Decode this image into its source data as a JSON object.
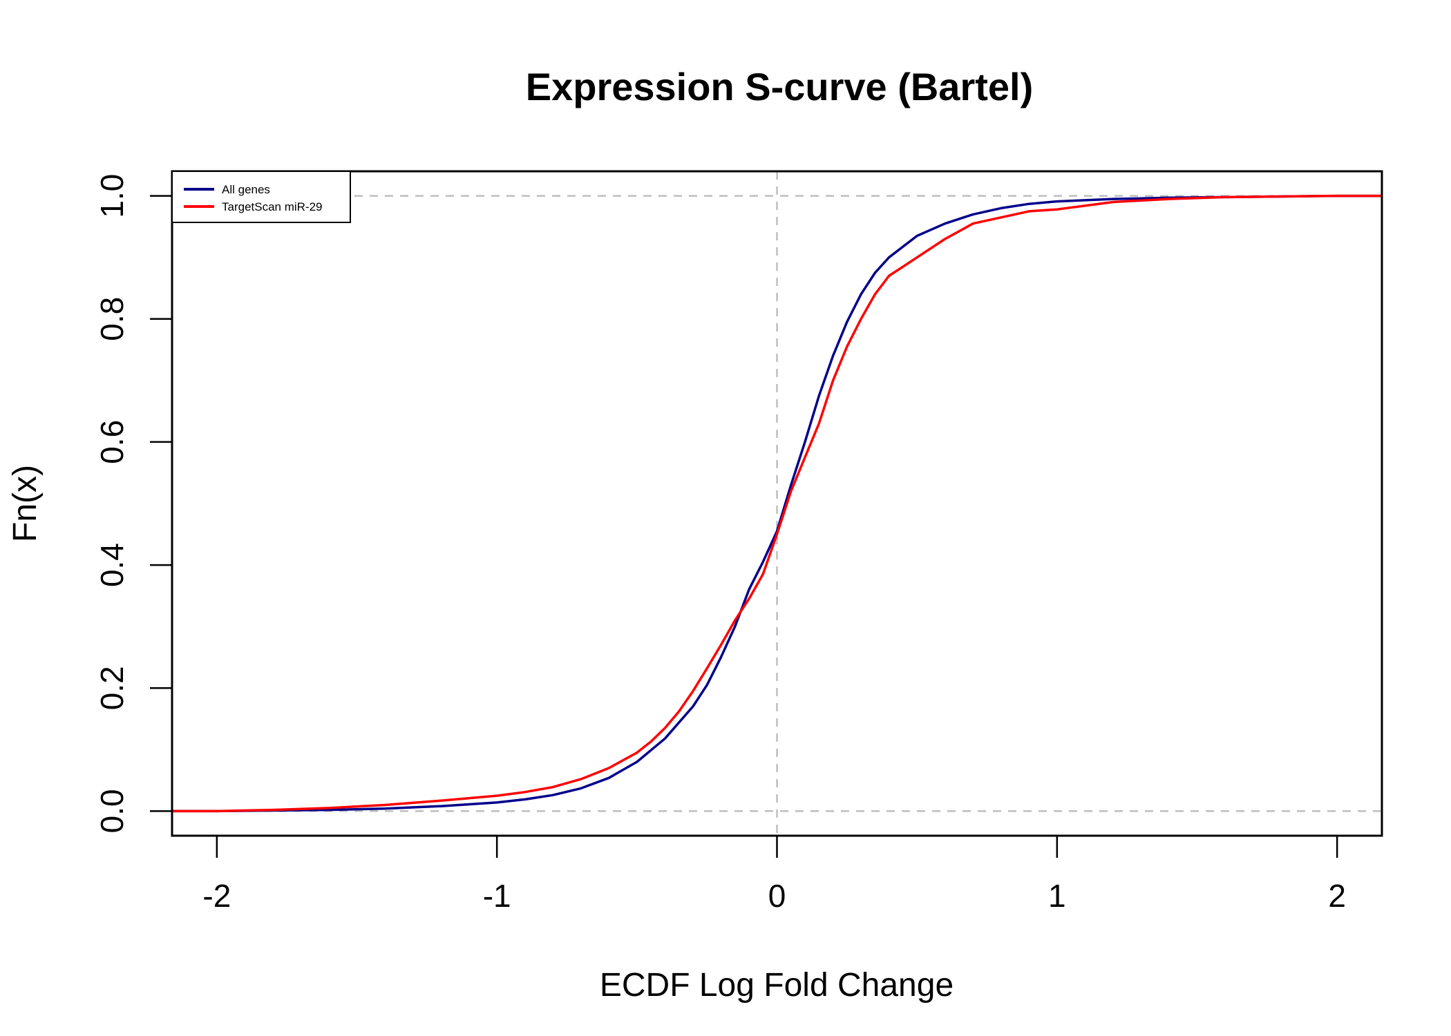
{
  "chart_data": {
    "type": "line",
    "title": "Expression S-curve (Bartel)",
    "xlabel": "ECDF Log Fold Change",
    "ylabel": "Fn(x)",
    "xlim": [
      -2.16,
      2.16
    ],
    "ylim": [
      -0.04,
      1.04
    ],
    "x_ticks": [
      -2,
      -1,
      0,
      1,
      2
    ],
    "x_tick_labels": [
      "-2",
      "-1",
      "0",
      "1",
      "2"
    ],
    "y_ticks": [
      0,
      0.2,
      0.4,
      0.6,
      0.8,
      1
    ],
    "y_tick_labels": [
      "0.0",
      "0.2",
      "0.4",
      "0.6",
      "0.8",
      "1.0"
    ],
    "reference_lines": {
      "horizontal": [
        0,
        1
      ],
      "vertical": [
        0
      ],
      "color": "#bebebe",
      "style": "dashed"
    },
    "grid": false,
    "legend_position": "top-left",
    "series": [
      {
        "name": "All genes",
        "color": "#00008b",
        "x": [
          -2.16,
          -2.0,
          -1.8,
          -1.6,
          -1.4,
          -1.2,
          -1.0,
          -0.9,
          -0.8,
          -0.7,
          -0.6,
          -0.5,
          -0.4,
          -0.3,
          -0.25,
          -0.2,
          -0.15,
          -0.1,
          -0.05,
          0.0,
          0.05,
          0.1,
          0.15,
          0.2,
          0.25,
          0.3,
          0.35,
          0.4,
          0.5,
          0.6,
          0.7,
          0.8,
          0.9,
          1.0,
          1.2,
          1.4,
          1.6,
          1.8,
          2.0,
          2.16
        ],
        "y": [
          0.0,
          0.0,
          0.001,
          0.002,
          0.004,
          0.008,
          0.014,
          0.019,
          0.026,
          0.037,
          0.054,
          0.08,
          0.118,
          0.17,
          0.205,
          0.25,
          0.3,
          0.36,
          0.405,
          0.455,
          0.53,
          0.6,
          0.675,
          0.74,
          0.795,
          0.84,
          0.875,
          0.9,
          0.935,
          0.955,
          0.97,
          0.98,
          0.987,
          0.991,
          0.995,
          0.997,
          0.998,
          0.999,
          1.0,
          1.0
        ]
      },
      {
        "name": "TargetScan miR-29",
        "color": "#ff0000",
        "x": [
          -2.16,
          -2.0,
          -1.8,
          -1.6,
          -1.4,
          -1.2,
          -1.0,
          -0.9,
          -0.8,
          -0.7,
          -0.6,
          -0.5,
          -0.45,
          -0.4,
          -0.35,
          -0.3,
          -0.25,
          -0.2,
          -0.15,
          -0.1,
          -0.05,
          0.0,
          0.05,
          0.1,
          0.15,
          0.2,
          0.25,
          0.3,
          0.35,
          0.4,
          0.45,
          0.5,
          0.6,
          0.7,
          0.8,
          0.9,
          1.0,
          1.2,
          1.4,
          1.6,
          1.8,
          2.0,
          2.16
        ],
        "y": [
          0.0,
          0.0,
          0.002,
          0.005,
          0.01,
          0.017,
          0.025,
          0.031,
          0.039,
          0.052,
          0.07,
          0.095,
          0.113,
          0.135,
          0.162,
          0.195,
          0.232,
          0.27,
          0.31,
          0.345,
          0.385,
          0.45,
          0.52,
          0.575,
          0.63,
          0.7,
          0.755,
          0.8,
          0.84,
          0.87,
          0.885,
          0.9,
          0.93,
          0.955,
          0.965,
          0.975,
          0.978,
          0.99,
          0.995,
          0.998,
          0.999,
          1.0,
          1.0
        ]
      }
    ]
  }
}
